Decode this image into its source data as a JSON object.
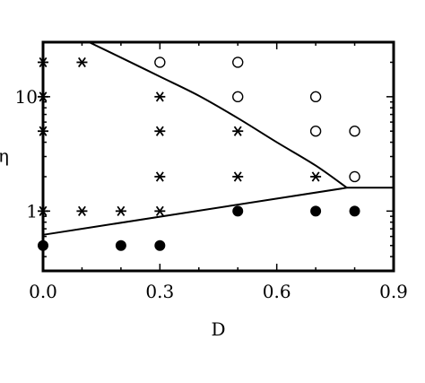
{
  "chart_data": {
    "type": "scatter",
    "title": "",
    "xlabel": "D",
    "ylabel": "η",
    "xlim": [
      0.0,
      0.9
    ],
    "ylim": [
      0.3,
      30
    ],
    "y_scale": "log",
    "grid": false,
    "legend": "none",
    "x_ticks": [
      0.0,
      0.3,
      0.6,
      0.9
    ],
    "x_tick_labels": [
      "0.0",
      "0.3",
      "0.6",
      "0.9"
    ],
    "y_ticks": [
      1,
      10
    ],
    "y_tick_labels": [
      "1",
      "10"
    ],
    "series": [
      {
        "marker": "asterisk",
        "points": [
          [
            0.0,
            20
          ],
          [
            0.1,
            20
          ],
          [
            0.0,
            10
          ],
          [
            0.0,
            5
          ],
          [
            0.0,
            1
          ],
          [
            0.1,
            1
          ],
          [
            0.2,
            1
          ],
          [
            0.3,
            1
          ],
          [
            0.3,
            10
          ],
          [
            0.3,
            5
          ],
          [
            0.3,
            2
          ],
          [
            0.5,
            5
          ],
          [
            0.5,
            2
          ],
          [
            0.7,
            2
          ]
        ]
      },
      {
        "marker": "open-circle",
        "points": [
          [
            0.3,
            20
          ],
          [
            0.5,
            20
          ],
          [
            0.5,
            10
          ],
          [
            0.7,
            10
          ],
          [
            0.7,
            5
          ],
          [
            0.8,
            5
          ],
          [
            0.8,
            2
          ]
        ]
      },
      {
        "marker": "filled-circle",
        "points": [
          [
            0.0,
            0.5
          ],
          [
            0.2,
            0.5
          ],
          [
            0.3,
            0.5
          ],
          [
            0.5,
            1
          ],
          [
            0.7,
            1
          ],
          [
            0.8,
            1
          ]
        ]
      }
    ],
    "boundary_lines": [
      {
        "points": [
          [
            0.118,
            30
          ],
          [
            0.2,
            22
          ],
          [
            0.3,
            15
          ],
          [
            0.4,
            10.2
          ],
          [
            0.5,
            6.5
          ],
          [
            0.6,
            4.0
          ],
          [
            0.7,
            2.5
          ],
          [
            0.78,
            1.6
          ]
        ]
      },
      {
        "points": [
          [
            0.0,
            0.62
          ],
          [
            0.78,
            1.6
          ],
          [
            0.9,
            1.6
          ]
        ]
      }
    ]
  }
}
